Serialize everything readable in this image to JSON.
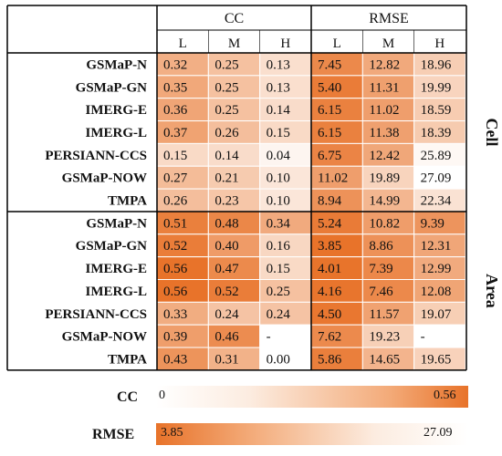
{
  "chart_data": {
    "type": "heatmap",
    "group_headers": [
      "CC",
      "RMSE"
    ],
    "sub_headers": [
      "L",
      "M",
      "H"
    ],
    "sections": [
      {
        "name": "Cell",
        "rows": [
          {
            "label": "GSMaP-N",
            "cc": [
              "0.32",
              "0.25",
              "0.13"
            ],
            "rmse": [
              "7.45",
              "12.82",
              "18.96"
            ]
          },
          {
            "label": "GSMaP-GN",
            "cc": [
              "0.35",
              "0.25",
              "0.13"
            ],
            "rmse": [
              "5.40",
              "11.31",
              "19.99"
            ]
          },
          {
            "label": "IMERG-E",
            "cc": [
              "0.36",
              "0.25",
              "0.14"
            ],
            "rmse": [
              "6.15",
              "11.02",
              "18.59"
            ]
          },
          {
            "label": "IMERG-L",
            "cc": [
              "0.37",
              "0.26",
              "0.15"
            ],
            "rmse": [
              "6.15",
              "11.38",
              "18.39"
            ]
          },
          {
            "label": "PERSIANN-CCS",
            "cc": [
              "0.15",
              "0.14",
              "0.04"
            ],
            "rmse": [
              "6.75",
              "12.42",
              "25.89"
            ]
          },
          {
            "label": "GSMaP-NOW",
            "cc": [
              "0.27",
              "0.21",
              "0.10"
            ],
            "rmse": [
              "11.02",
              "19.89",
              "27.09"
            ]
          },
          {
            "label": "TMPA",
            "cc": [
              "0.26",
              "0.23",
              "0.10"
            ],
            "rmse": [
              "8.94",
              "14.99",
              "22.34"
            ]
          }
        ]
      },
      {
        "name": "Area",
        "rows": [
          {
            "label": "GSMaP-N",
            "cc": [
              "0.51",
              "0.48",
              "0.34"
            ],
            "rmse": [
              "5.24",
              "10.82",
              "9.39"
            ]
          },
          {
            "label": "GSMaP-GN",
            "cc": [
              "0.52",
              "0.40",
              "0.16"
            ],
            "rmse": [
              "3.85",
              "8.86",
              "12.31"
            ]
          },
          {
            "label": "IMERG-E",
            "cc": [
              "0.56",
              "0.47",
              "0.15"
            ],
            "rmse": [
              "4.01",
              "7.39",
              "12.99"
            ]
          },
          {
            "label": "IMERG-L",
            "cc": [
              "0.56",
              "0.52",
              "0.25"
            ],
            "rmse": [
              "4.16",
              "7.46",
              "12.08"
            ]
          },
          {
            "label": "PERSIANN-CCS",
            "cc": [
              "0.33",
              "0.24",
              "0.24"
            ],
            "rmse": [
              "4.50",
              "11.57",
              "19.07"
            ]
          },
          {
            "label": "GSMaP-NOW",
            "cc": [
              "0.39",
              "0.46",
              "-"
            ],
            "rmse": [
              "7.62",
              "19.23",
              "-"
            ]
          },
          {
            "label": "TMPA",
            "cc": [
              "0.43",
              "0.31",
              "0.00"
            ],
            "rmse": [
              "5.86",
              "14.65",
              "19.65"
            ]
          }
        ]
      }
    ],
    "colorbars": [
      {
        "label": "CC",
        "min": "0",
        "max": "0.56",
        "direction": "increasing"
      },
      {
        "label": "RMSE",
        "min": "3.85",
        "max": "27.09",
        "direction": "decreasing"
      }
    ],
    "colors": {
      "high": "#e8732a",
      "low": "#ffffff"
    }
  }
}
